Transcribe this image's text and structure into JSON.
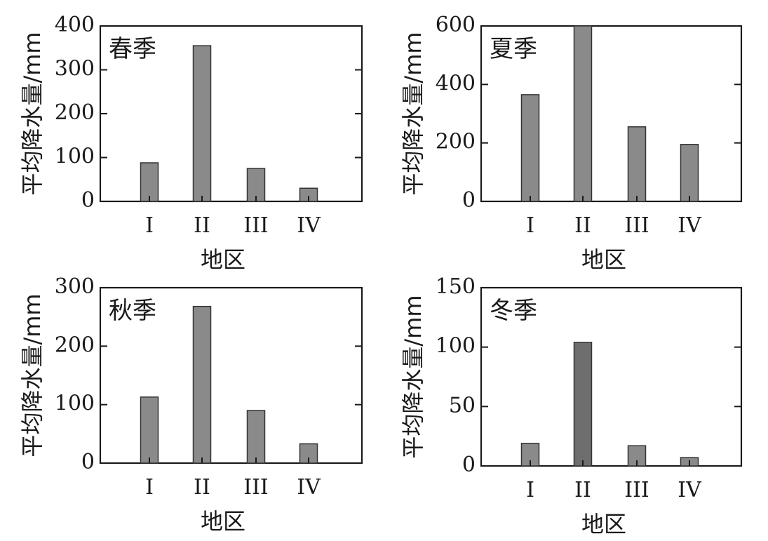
{
  "colors": {
    "bar": "#8a8a8a",
    "bar_dark": "#6e6e6e",
    "axis": "#1a1a1a"
  },
  "chart_data": [
    {
      "type": "bar",
      "title": "春季",
      "categories": [
        "I",
        "II",
        "III",
        "IV"
      ],
      "values": [
        88,
        355,
        75,
        30
      ],
      "xlabel": "地区",
      "ylabel": "平均降水量/mm",
      "ylim": [
        0,
        400
      ],
      "yticks": [
        0,
        100,
        200,
        300,
        400
      ]
    },
    {
      "type": "bar",
      "title": "夏季",
      "categories": [
        "I",
        "II",
        "III",
        "IV"
      ],
      "values": [
        365,
        600,
        255,
        195
      ],
      "xlabel": "地区",
      "ylabel": "平均降水量/mm",
      "ylim": [
        0,
        600
      ],
      "yticks": [
        0,
        200,
        400,
        600
      ]
    },
    {
      "type": "bar",
      "title": "秋季",
      "categories": [
        "I",
        "II",
        "III",
        "IV"
      ],
      "values": [
        113,
        268,
        90,
        33
      ],
      "xlabel": "地区",
      "ylabel": "平均降水量/mm",
      "ylim": [
        0,
        300
      ],
      "yticks": [
        0,
        100,
        200,
        300
      ]
    },
    {
      "type": "bar",
      "title": "冬季",
      "categories": [
        "I",
        "II",
        "III",
        "IV"
      ],
      "values": [
        19,
        104,
        17,
        7
      ],
      "xlabel": "地区",
      "ylabel": "平均降水量/mm",
      "ylim": [
        0,
        150
      ],
      "yticks": [
        0,
        50,
        100,
        150
      ]
    }
  ]
}
